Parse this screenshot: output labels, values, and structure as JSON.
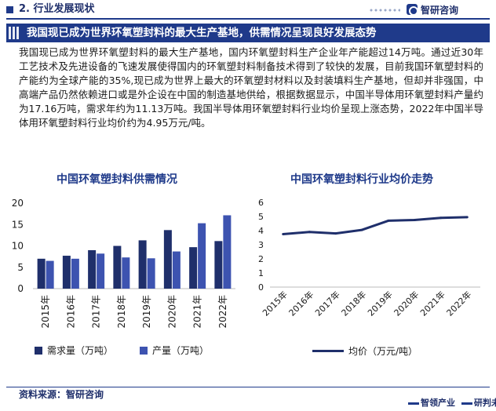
{
  "header": {
    "section": "2. 行业发展现状",
    "brand": "智研咨询",
    "brand_icon": "zhiyan-logo-icon"
  },
  "banner": {
    "title": "我国现已成为世界环氧塑封料的最大生产基地，供需情况呈现良好发展态势"
  },
  "body_text": "我国现已成为世界环氧塑封料的最大生产基地，国内环氧塑封料生产企业年产能超过14万吨。通过近30年工艺技术及先进设备的飞速发展使得国内的环氧塑封料制备技术得到了较快的发展，目前我国环氧塑封料的产能约为全球产能的35%,现已成为世界上最大的环氧塑封材料以及封装填料生产基地，但却并非强国，中高端产品仍然依赖进口或是外企设在中国的制造基地供给，根据数据显示，中国半导体用环氧塑封料产量约为17.16万吨，需求年约为11.13万吨。我国半导体用环氧塑封料行业均价呈现上涨态势，2022年中国半导体用环氧塑封料行业均价约为4.95万元/吨。",
  "footer": {
    "source": "资料来源：智研咨询",
    "slogan_a": "智领产业",
    "slogan_b": "研判未来"
  },
  "colors": {
    "navy": "#1f2f6b",
    "blue": "#3d53b0",
    "accent": "#1f3a8a"
  },
  "chart_data": [
    {
      "type": "bar",
      "title": "中国环氧塑封料供需情况",
      "categories": [
        "2015年",
        "2016年",
        "2017年",
        "2018年",
        "2019年",
        "2020年",
        "2021年",
        "2022年"
      ],
      "series": [
        {
          "name": "需求量（万吨）",
          "color": "#1f2f6b",
          "values": [
            7.0,
            7.7,
            9.0,
            10.0,
            11.3,
            13.7,
            9.7,
            11.13
          ]
        },
        {
          "name": "产量（万吨）",
          "color": "#3d53b0",
          "values": [
            6.5,
            7.0,
            8.2,
            7.3,
            7.1,
            8.7,
            15.3,
            17.16
          ]
        }
      ],
      "yticks": [
        0,
        5,
        10,
        15,
        20
      ],
      "ylim": [
        0,
        20
      ],
      "grid": false,
      "legend": "bottom"
    },
    {
      "type": "line",
      "title": "中国环氧塑封料行业均价走势",
      "categories": [
        "2015年",
        "2016年",
        "2017年",
        "2018年",
        "2019年",
        "2020年",
        "2021年",
        "2022年"
      ],
      "series": [
        {
          "name": "均价（万元/吨）",
          "color": "#1f2f6b",
          "values": [
            3.75,
            3.9,
            3.8,
            4.05,
            4.7,
            4.75,
            4.9,
            4.95
          ]
        }
      ],
      "yticks": [
        0,
        1,
        2,
        3,
        4,
        5,
        6
      ],
      "ylim": [
        0,
        6
      ],
      "grid": false,
      "legend": "bottom"
    }
  ]
}
